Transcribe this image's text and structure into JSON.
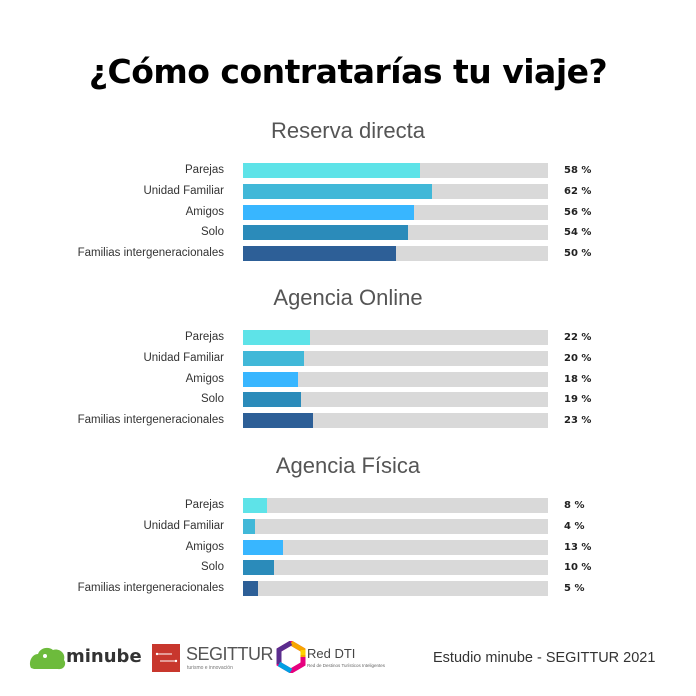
{
  "title": "¿Cómo contratarías tu viaje?",
  "chart_data": [
    {
      "type": "bar",
      "orientation": "horizontal",
      "title": "Reserva directa",
      "categories": [
        "Parejas",
        "Unidad Familiar",
        "Amigos",
        "Solo",
        "Familias intergeneracionales"
      ],
      "values": [
        58,
        62,
        56,
        54,
        50
      ],
      "value_labels": [
        "58 %",
        "62 %",
        "56 %",
        "54 %",
        "50 %"
      ],
      "xlim": [
        0,
        100
      ],
      "unit": "%"
    },
    {
      "type": "bar",
      "orientation": "horizontal",
      "title": "Agencia Online",
      "categories": [
        "Parejas",
        "Unidad Familiar",
        "Amigos",
        "Solo",
        "Familias intergeneracionales"
      ],
      "values": [
        22,
        20,
        18,
        19,
        23
      ],
      "value_labels": [
        "22 %",
        "20 %",
        "18 %",
        "19 %",
        "23 %"
      ],
      "xlim": [
        0,
        100
      ],
      "unit": "%"
    },
    {
      "type": "bar",
      "orientation": "horizontal",
      "title": "Agencia Física",
      "categories": [
        "Parejas",
        "Unidad Familiar",
        "Amigos",
        "Solo",
        "Familias intergeneracionales"
      ],
      "values": [
        8,
        4,
        13,
        10,
        5
      ],
      "value_labels": [
        "8 %",
        "4 %",
        "13 %",
        "10 %",
        "5 %"
      ],
      "xlim": [
        0,
        100
      ],
      "unit": "%"
    }
  ],
  "colors": {
    "categories": [
      "#5ee3e8",
      "#41b8d8",
      "#38b6ff",
      "#2b8bba",
      "#2d5f97"
    ],
    "track": "#d9d9d9",
    "minube_green": "#6dbb3c",
    "segittur_red": "#c8372d"
  },
  "footer": {
    "logos": {
      "minube": "minube",
      "segittur": "SEGITTUR",
      "segittur_tagline": "turismo e innovación",
      "reddti": "Red DTI",
      "reddti_tagline": "Red de Destinos Turísticos Inteligentes"
    },
    "credit": "Estudio minube - SEGITTUR 2021"
  }
}
